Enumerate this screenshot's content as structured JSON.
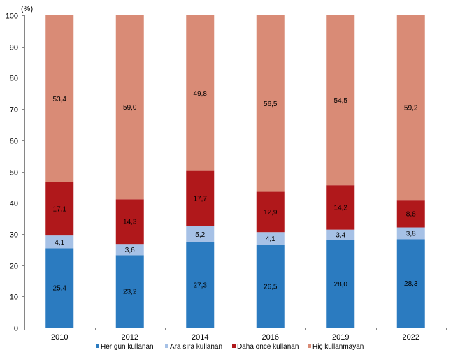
{
  "chart_data": {
    "type": "bar",
    "stacked": true,
    "title": "",
    "unit_label": "(%)",
    "xlabel": "",
    "ylabel": "",
    "ylim": [
      0,
      100
    ],
    "yticks": [
      0,
      10,
      20,
      30,
      40,
      50,
      60,
      70,
      80,
      90,
      100
    ],
    "grid": false,
    "legend_position": "bottom",
    "categories": [
      "2010",
      "2012",
      "2014",
      "2016",
      "2019",
      "2022"
    ],
    "series": [
      {
        "name": "Her gün kullanan",
        "color": "#2B7BC0",
        "values": [
          25.4,
          23.2,
          27.3,
          26.5,
          28.0,
          28.3
        ],
        "labels": [
          "25,4",
          "23,2",
          "27,3",
          "26,5",
          "28,0",
          "28,3"
        ]
      },
      {
        "name": "Ara sıra kullanan",
        "color": "#A6C1E6",
        "values": [
          4.1,
          3.6,
          5.2,
          4.1,
          3.4,
          3.8
        ],
        "labels": [
          "4,1",
          "3,6",
          "5,2",
          "4,1",
          "3,4",
          "3,8"
        ]
      },
      {
        "name": "Daha önce kullanan",
        "color": "#B0181B",
        "values": [
          17.1,
          14.3,
          17.7,
          12.9,
          14.2,
          8.8
        ],
        "labels": [
          "17,1",
          "14,3",
          "17,7",
          "12,9",
          "14,2",
          "8,8"
        ]
      },
      {
        "name": "Hiç kullanmayan",
        "color": "#D98B76",
        "values": [
          53.4,
          59.0,
          49.8,
          56.5,
          54.5,
          59.2
        ],
        "labels": [
          "53,4",
          "59,0",
          "49,8",
          "56,5",
          "54,5",
          "59,2"
        ]
      }
    ]
  }
}
